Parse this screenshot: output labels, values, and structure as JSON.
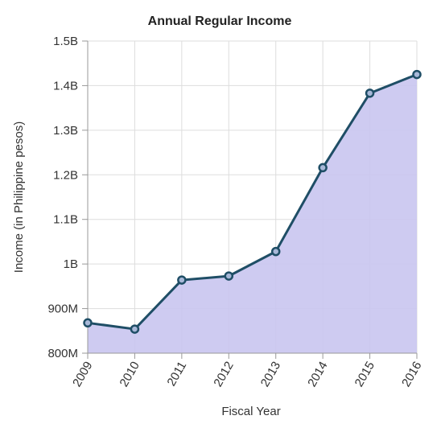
{
  "chart_data": {
    "type": "area",
    "title": "Annual Regular Income",
    "xlabel": "Fiscal Year",
    "ylabel": "Income (in Philippine pesos)",
    "x": [
      "2009",
      "2010",
      "2011",
      "2012",
      "2013",
      "2014",
      "2015",
      "2016"
    ],
    "series": [
      {
        "values": [
          868000000,
          854000000,
          964000000,
          973000000,
          1028000000,
          1216000000,
          1383000000,
          1425000000
        ]
      }
    ],
    "ylim": [
      800000000,
      1500000000
    ],
    "yticks": [
      800000000,
      900000000,
      1000000000,
      1100000000,
      1200000000,
      1300000000,
      1400000000,
      1500000000
    ],
    "ytick_labels": [
      "800M",
      "900M",
      "1B",
      "1.1B",
      "1.2B",
      "1.3B",
      "1.4B",
      "1.5B"
    ],
    "grid": true,
    "legend": "none",
    "colors": {
      "line": "#1f4e66",
      "fill": "#c9c5f0",
      "marker_fill": "#a8b8d8"
    }
  }
}
